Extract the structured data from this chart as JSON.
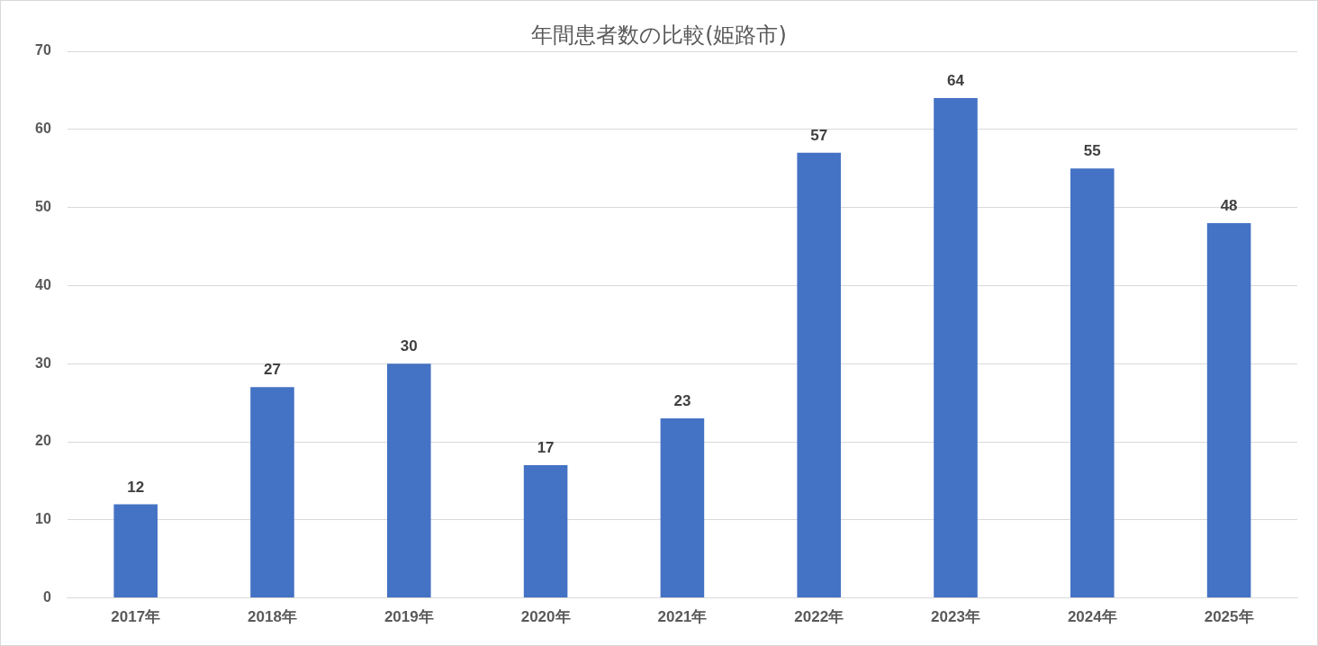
{
  "chart_data": {
    "type": "bar",
    "title": "年間患者数の比較(姫路市)",
    "categories": [
      "2017年",
      "2018年",
      "2019年",
      "2020年",
      "2021年",
      "2022年",
      "2023年",
      "2024年",
      "2025年"
    ],
    "values": [
      12,
      27,
      30,
      17,
      23,
      57,
      64,
      55,
      48
    ],
    "color": "#4472c4",
    "ylim": [
      0,
      70
    ],
    "yticks": [
      0,
      10,
      20,
      30,
      40,
      50,
      60,
      70
    ],
    "grid": "y",
    "data_labels": true
  }
}
